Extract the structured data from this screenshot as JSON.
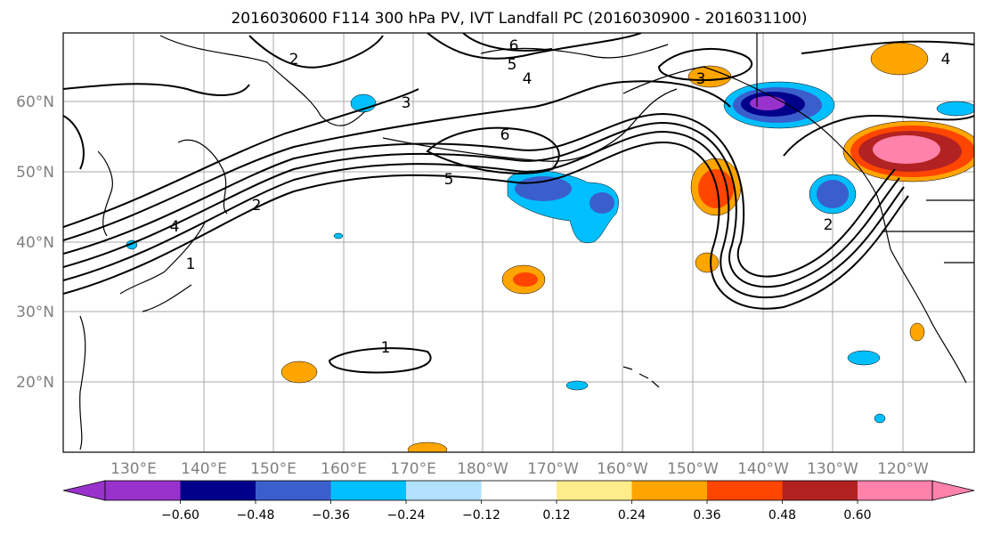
{
  "title": "2016030600 F114 300 hPa PV, IVT Landfall PC (2016030900 - 2016031100)",
  "map": {
    "lon_ticks": [
      "130°E",
      "140°E",
      "150°E",
      "160°E",
      "170°E",
      "180°W",
      "170°W",
      "160°W",
      "150°W",
      "140°W",
      "130°W",
      "120°W"
    ],
    "lat_ticks": [
      "60°N",
      "50°N",
      "40°N",
      "30°N",
      "20°N"
    ],
    "contour_labels": [
      "6",
      "5",
      "4",
      "3",
      "6",
      "5",
      "4",
      "2",
      "1",
      "2",
      "1",
      "3",
      "2",
      "4"
    ]
  },
  "colorbar": {
    "ticks": [
      "−0.60",
      "−0.48",
      "−0.36",
      "−0.24",
      "−0.12",
      "0.12",
      "0.24",
      "0.36",
      "0.48",
      "0.60"
    ],
    "colors": [
      "#9932cc",
      "#00008b",
      "#3a5fcd",
      "#00bfff",
      "#b2e2ff",
      "#ffffff",
      "#ffec8b",
      "#ffa500",
      "#ff4500",
      "#b22222",
      "#ff82ab"
    ]
  }
}
